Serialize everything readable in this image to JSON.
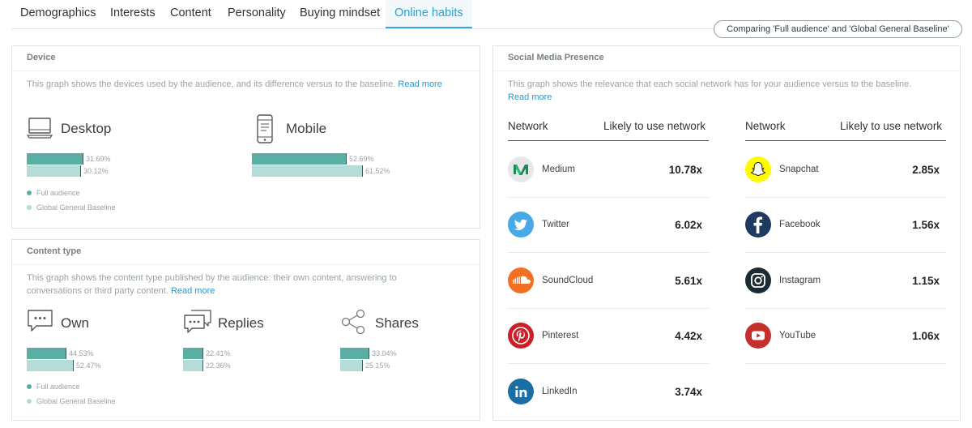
{
  "tabs": [
    {
      "label": "Demographics"
    },
    {
      "label": "Interests"
    },
    {
      "label": "Content"
    },
    {
      "label": "Personality"
    },
    {
      "label": "Buying mindset"
    },
    {
      "label": "Online habits",
      "active": true
    }
  ],
  "compare_label": "Comparing 'Full audience' and 'Global General Baseline'",
  "colors": {
    "full": "#5aaea4",
    "baseline": "#b6dcd8",
    "accent": "#2aa0d4"
  },
  "device": {
    "title": "Device",
    "description": "This graph shows the devices used by the audience, and its difference versus to the baseline.",
    "read_more": "Read more",
    "items": [
      {
        "name": "Desktop",
        "icon": "desktop-icon",
        "full": 31.69,
        "baseline": 30.12,
        "full_label": "31.69%",
        "baseline_label": "30.12%"
      },
      {
        "name": "Mobile",
        "icon": "mobile-icon",
        "full": 52.69,
        "baseline": 61.52,
        "full_label": "52.69%",
        "baseline_label": "61.52%"
      }
    ],
    "legend": {
      "full": "Full audience",
      "baseline": "Global General Baseline"
    }
  },
  "content_type": {
    "title": "Content type",
    "description": "This graph shows the content type published by the audience: their own content, answering to conversations or third party content.",
    "read_more": "Read more",
    "items": [
      {
        "name": "Own",
        "icon": "speech-bubble-icon",
        "full": 44.53,
        "baseline": 52.47,
        "full_label": "44.53%",
        "baseline_label": "52.47%"
      },
      {
        "name": "Replies",
        "icon": "double-speech-bubble-icon",
        "full": 22.41,
        "baseline": 22.36,
        "full_label": "22.41%",
        "baseline_label": "22.36%"
      },
      {
        "name": "Shares",
        "icon": "share-icon",
        "full": 33.04,
        "baseline": 25.15,
        "full_label": "33.04%",
        "baseline_label": "25.15%"
      }
    ],
    "legend": {
      "full": "Full audience",
      "baseline": "Global General Baseline"
    }
  },
  "social": {
    "title": "Social Media Presence",
    "description": "This graph shows the relevance that each social network has for your audience versus to the baseline.",
    "read_more": "Read more",
    "col_network": "Network",
    "col_likely": "Likely to use network",
    "left": [
      {
        "name": "Medium",
        "icon": "medium-icon",
        "value": "10.78x"
      },
      {
        "name": "Twitter",
        "icon": "twitter-icon",
        "value": "6.02x"
      },
      {
        "name": "SoundCloud",
        "icon": "soundcloud-icon",
        "value": "5.61x"
      },
      {
        "name": "Pinterest",
        "icon": "pinterest-icon",
        "value": "4.42x"
      },
      {
        "name": "LinkedIn",
        "icon": "linkedin-icon",
        "value": "3.74x"
      }
    ],
    "right": [
      {
        "name": "Snapchat",
        "icon": "snapchat-icon",
        "value": "2.85x"
      },
      {
        "name": "Facebook",
        "icon": "facebook-icon",
        "value": "1.56x"
      },
      {
        "name": "Instagram",
        "icon": "instagram-icon",
        "value": "1.15x"
      },
      {
        "name": "YouTube",
        "icon": "youtube-icon",
        "value": "1.06x"
      }
    ]
  }
}
